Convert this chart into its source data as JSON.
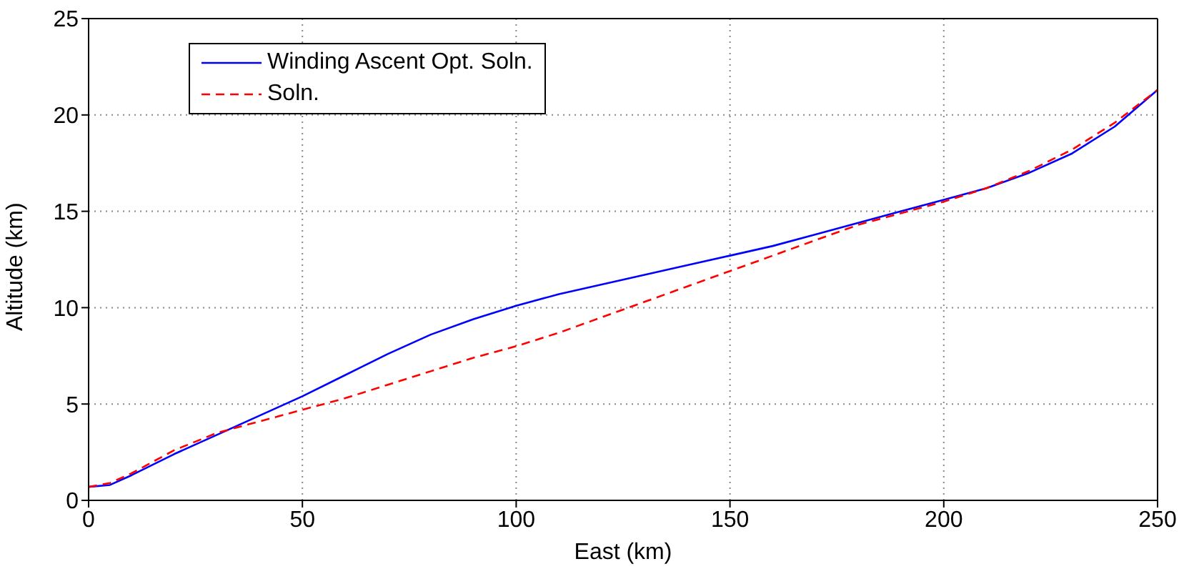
{
  "chart_data": {
    "type": "line",
    "xlabel": "East (km)",
    "ylabel": "Altitude (km)",
    "xlim": [
      0,
      250
    ],
    "xticks": [
      0,
      50,
      100,
      150,
      200,
      250
    ],
    "ylim": [
      0,
      25
    ],
    "yticks": [
      0,
      5,
      10,
      15,
      20,
      25
    ],
    "grid": true,
    "legend": "top left",
    "marker": "none",
    "series": [
      {
        "name": "Winding Ascent Opt. Soln.",
        "color": "#0000ff",
        "line_style": "solid",
        "x": [
          0,
          5,
          10,
          20,
          30,
          40,
          50,
          60,
          70,
          80,
          90,
          100,
          110,
          120,
          130,
          140,
          150,
          160,
          170,
          180,
          190,
          200,
          210,
          220,
          230,
          240,
          250
        ],
        "values": [
          0.7,
          0.8,
          1.3,
          2.4,
          3.4,
          4.4,
          5.4,
          6.5,
          7.6,
          8.6,
          9.4,
          10.1,
          10.7,
          11.2,
          11.7,
          12.2,
          12.7,
          13.2,
          13.8,
          14.4,
          15.0,
          15.6,
          16.2,
          17.0,
          18.0,
          19.4,
          21.3
        ]
      },
      {
        "name": "Soln.",
        "color": "#ff0000",
        "line_style": "dashed",
        "x": [
          0,
          5,
          10,
          20,
          30,
          40,
          50,
          60,
          70,
          80,
          90,
          100,
          110,
          120,
          130,
          140,
          150,
          160,
          170,
          180,
          190,
          200,
          210,
          220,
          230,
          240,
          250
        ],
        "values": [
          0.7,
          0.9,
          1.4,
          2.6,
          3.5,
          4.1,
          4.7,
          5.3,
          6.0,
          6.7,
          7.4,
          8.0,
          8.7,
          9.5,
          10.3,
          11.1,
          11.9,
          12.7,
          13.5,
          14.3,
          14.9,
          15.5,
          16.2,
          17.1,
          18.2,
          19.6,
          21.3
        ]
      }
    ]
  }
}
